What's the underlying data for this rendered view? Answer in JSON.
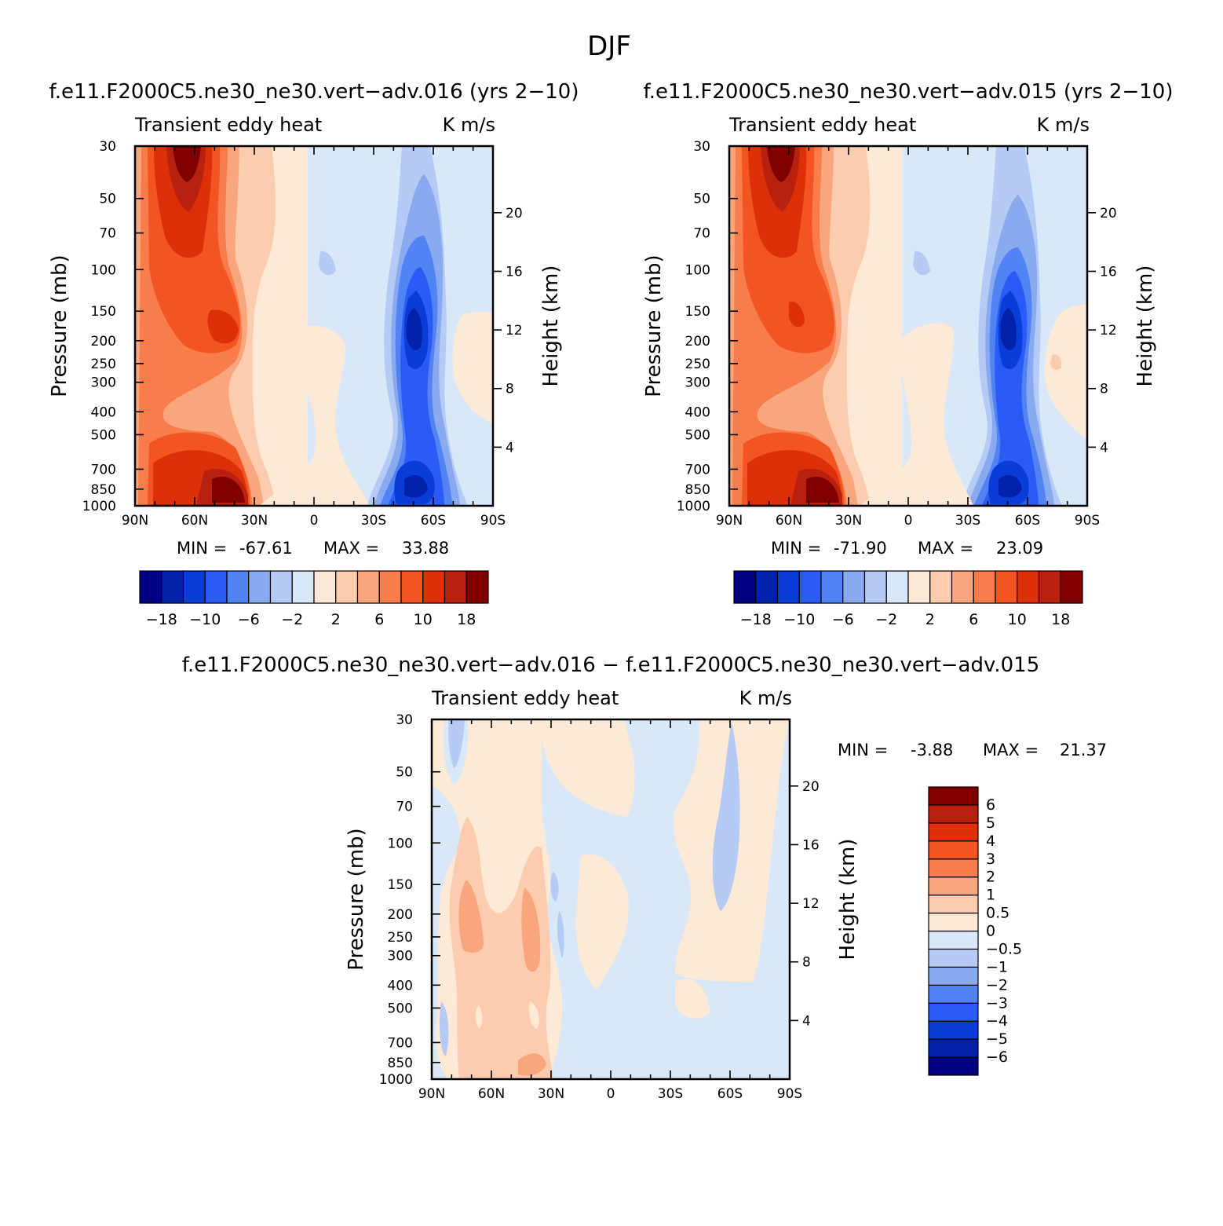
{
  "page": {
    "title": "DJF",
    "difference_title": "f.e11.F2000C5.ne30_ne30.vert-adv.016 - f.e11.F2000C5.ne30_ne30.vert-adv.015"
  },
  "colors": {
    "main_scale": [
      "#000080",
      "#0022aa",
      "#0a3dd8",
      "#2a5cf5",
      "#5283f5",
      "#8aaaf0",
      "#b5cbf5",
      "#d8e8f8",
      "#fde9d6",
      "#fcccae",
      "#f9a67e",
      "#f97c4b",
      "#f25422",
      "#dd3008",
      "#b82010",
      "#800000"
    ],
    "diff_scale": [
      "#000080",
      "#0022aa",
      "#0a3dd8",
      "#2a5cf5",
      "#5283f5",
      "#8aaaf0",
      "#b5cbf5",
      "#d8e8f8",
      "#fde9d6",
      "#fcccae",
      "#f9a67e",
      "#f97c4b",
      "#f25422",
      "#dd3008",
      "#b82010",
      "#800000"
    ]
  },
  "chart_data": [
    {
      "id": "top_left",
      "type": "contour",
      "title": "f.e11.F2000C5.ne30_ne30.vert-adv.016 (yrs 2-10)",
      "left_string": "Transient eddy heat",
      "right_string": "K m/s",
      "ylabel": "Pressure (mb)",
      "ylabel_right": "Height (km)",
      "x_ticks": [
        "90N",
        "60N",
        "30N",
        "0",
        "30S",
        "60S",
        "90S"
      ],
      "x_tick_values": [
        90,
        60,
        30,
        0,
        -30,
        -60,
        -90
      ],
      "y_ticks": [
        "30",
        "50",
        "70",
        "100",
        "150",
        "200",
        "250",
        "300",
        "400",
        "500",
        "700",
        "850",
        "1000"
      ],
      "y_tick_values": [
        30,
        50,
        70,
        100,
        150,
        200,
        250,
        300,
        400,
        500,
        700,
        850,
        1000
      ],
      "height_ticks": [
        "20",
        "16",
        "12",
        "8",
        "4"
      ],
      "height_tick_values": [
        20,
        16,
        12,
        8,
        4
      ],
      "ylim": [
        1000,
        30
      ],
      "stats": {
        "min_label": "MIN =",
        "min": "-67.61",
        "max_label": "MAX =",
        "max": "33.88"
      },
      "colorbar": {
        "orientation": "horizontal",
        "levels": [
          -18,
          -14,
          -10,
          -8,
          -6,
          -4,
          -2,
          0,
          2,
          4,
          6,
          8,
          10,
          14,
          18
        ],
        "labels": [
          "-18",
          "-10",
          "-6",
          "-2",
          "2",
          "6",
          "10",
          "18"
        ]
      }
    },
    {
      "id": "top_right",
      "type": "contour",
      "title": "f.e11.F2000C5.ne30_ne30.vert-adv.015 (yrs 2-10)",
      "left_string": "Transient eddy heat",
      "right_string": "K m/s",
      "ylabel": "Pressure (mb)",
      "ylabel_right": "Height (km)",
      "x_ticks": [
        "90N",
        "60N",
        "30N",
        "0",
        "30S",
        "60S",
        "90S"
      ],
      "x_tick_values": [
        90,
        60,
        30,
        0,
        -30,
        -60,
        -90
      ],
      "y_ticks": [
        "30",
        "50",
        "70",
        "100",
        "150",
        "200",
        "250",
        "300",
        "400",
        "500",
        "700",
        "850",
        "1000"
      ],
      "y_tick_values": [
        30,
        50,
        70,
        100,
        150,
        200,
        250,
        300,
        400,
        500,
        700,
        850,
        1000
      ],
      "height_ticks": [
        "20",
        "16",
        "12",
        "8",
        "4"
      ],
      "height_tick_values": [
        20,
        16,
        12,
        8,
        4
      ],
      "ylim": [
        1000,
        30
      ],
      "stats": {
        "min_label": "MIN =",
        "min": "-71.90",
        "max_label": "MAX =",
        "max": "23.09"
      },
      "colorbar": {
        "orientation": "horizontal",
        "levels": [
          -18,
          -14,
          -10,
          -8,
          -6,
          -4,
          -2,
          0,
          2,
          4,
          6,
          8,
          10,
          14,
          18
        ],
        "labels": [
          "-18",
          "-10",
          "-6",
          "-2",
          "2",
          "6",
          "10",
          "18"
        ]
      }
    },
    {
      "id": "bottom",
      "type": "contour",
      "title": "f.e11.F2000C5.ne30_ne30.vert-adv.016 - f.e11.F2000C5.ne30_ne30.vert-adv.015",
      "left_string": "Transient eddy heat",
      "right_string": "K m/s",
      "ylabel": "Pressure (mb)",
      "ylabel_right": "Height (km)",
      "x_ticks": [
        "90N",
        "60N",
        "30N",
        "0",
        "30S",
        "60S",
        "90S"
      ],
      "x_tick_values": [
        90,
        60,
        30,
        0,
        -30,
        -60,
        -90
      ],
      "y_ticks": [
        "30",
        "50",
        "70",
        "100",
        "150",
        "200",
        "250",
        "300",
        "400",
        "500",
        "700",
        "850",
        "1000"
      ],
      "y_tick_values": [
        30,
        50,
        70,
        100,
        150,
        200,
        250,
        300,
        400,
        500,
        700,
        850,
        1000
      ],
      "height_ticks": [
        "20",
        "16",
        "12",
        "8",
        "4"
      ],
      "height_tick_values": [
        20,
        16,
        12,
        8,
        4
      ],
      "ylim": [
        1000,
        30
      ],
      "stats": {
        "min_label": "MIN =",
        "min": "-3.88",
        "max_label": "MAX =",
        "max": "21.37"
      },
      "colorbar": {
        "orientation": "vertical",
        "levels": [
          -6,
          -5,
          -4,
          -3,
          -2,
          -1,
          -0.5,
          0,
          0.5,
          1,
          2,
          3,
          4,
          5,
          6
        ],
        "labels": [
          "-6",
          "-5",
          "-4",
          "-3",
          "-2",
          "-1",
          "-0.5",
          "0",
          "0.5",
          "1",
          "2",
          "3",
          "4",
          "5",
          "6"
        ]
      }
    }
  ]
}
